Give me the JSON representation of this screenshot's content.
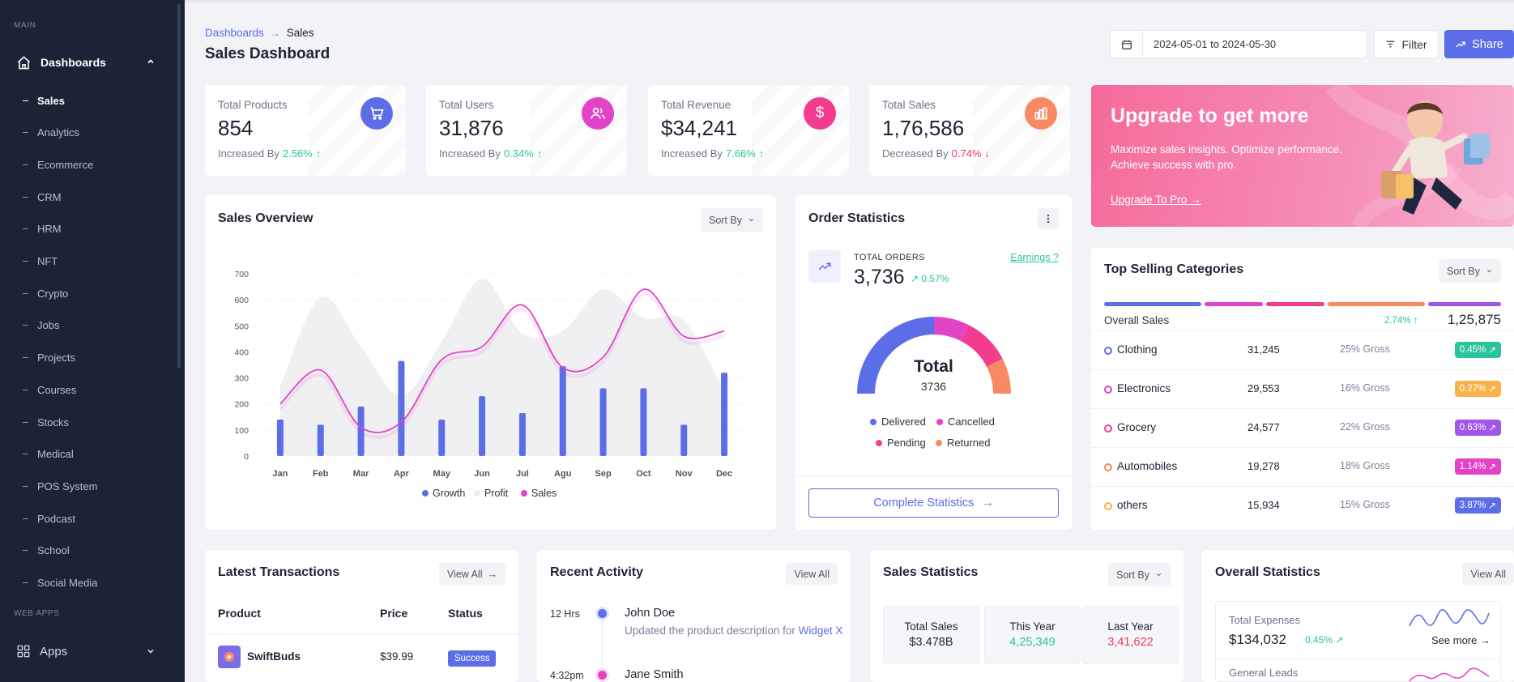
{
  "sidebar": {
    "section_main": "MAIN",
    "dashboards_label": "Dashboards",
    "items": [
      "Sales",
      "Analytics",
      "Ecommerce",
      "CRM",
      "HRM",
      "NFT",
      "Crypto",
      "Jobs",
      "Projects",
      "Courses",
      "Stocks",
      "Medical",
      "POS System",
      "Podcast",
      "School",
      "Social Media"
    ],
    "active_item": "Sales",
    "section_webapps": "WEB APPS",
    "apps_label": "Apps"
  },
  "header": {
    "breadcrumb_root": "Dashboards",
    "breadcrumb_sep": "→",
    "breadcrumb_current": "Sales",
    "title": "Sales Dashboard",
    "date_range": "2024-05-01 to 2024-05-30",
    "filter_label": "Filter",
    "share_label": "Share"
  },
  "kpis": [
    {
      "title": "Total Products",
      "value": "854",
      "trend_text": "Increased By",
      "pct": "2.56%",
      "arrow": "↑",
      "color": "#5b6ee8"
    },
    {
      "title": "Total Users",
      "value": "31,876",
      "trend_text": "Increased By",
      "pct": "0.34%",
      "arrow": "↑",
      "color": "#e243c7"
    },
    {
      "title": "Total Revenue",
      "value": "$34,241",
      "trend_text": "Increased By",
      "pct": "7.66%",
      "arrow": "↑",
      "color": "#f23d8f"
    },
    {
      "title": "Total Sales",
      "value": "1,76,586",
      "trend_text": "Decreased By",
      "pct": "0.74%",
      "arrow": "↓",
      "color": "#f78a62"
    }
  ],
  "upgrade": {
    "title": "Upgrade to get more",
    "description": "Maximize sales insights. Optimize performance. Achieve success with pro.",
    "link": "Upgrade To Pro"
  },
  "sales_overview": {
    "title": "Sales Overview",
    "sort_label": "Sort By"
  },
  "chart_data": {
    "type": "bar",
    "title": "Sales Overview",
    "categories": [
      "Jan",
      "Feb",
      "Mar",
      "Apr",
      "May",
      "Jun",
      "Jul",
      "Agu",
      "Sep",
      "Oct",
      "Nov",
      "Dec"
    ],
    "series": [
      {
        "name": "Growth",
        "type": "bar",
        "color": "#5b6ee8",
        "values": [
          140,
          120,
          190,
          365,
          140,
          230,
          165,
          345,
          260,
          260,
          120,
          320
        ]
      },
      {
        "name": "Profit",
        "type": "area",
        "color": "#f1f1f4",
        "values": [
          270,
          610,
          420,
          230,
          440,
          680,
          470,
          480,
          640,
          530,
          520,
          250
        ]
      },
      {
        "name": "Sales",
        "type": "line",
        "color": "#e243c7",
        "values": [
          200,
          330,
          110,
          130,
          370,
          420,
          580,
          340,
          380,
          640,
          460,
          480
        ]
      }
    ],
    "yticks": [
      0,
      100,
      200,
      300,
      400,
      500,
      600,
      700
    ],
    "ylim": [
      0,
      700
    ]
  },
  "order_stats": {
    "title": "Order Statistics",
    "total_label": "TOTAL ORDERS",
    "total_value": "3,736",
    "total_pct": "0.57%",
    "earnings_link": "Earnings ?",
    "gauge_title": "Total",
    "gauge_value": "3736",
    "segments": [
      {
        "name": "Delivered",
        "color": "#5b6ee8",
        "share": 0.5
      },
      {
        "name": "Cancelled",
        "color": "#e243c7",
        "share": 0.15
      },
      {
        "name": "Pending",
        "color": "#f23d8f",
        "share": 0.2
      },
      {
        "name": "Returned",
        "color": "#f78a62",
        "share": 0.15
      }
    ],
    "button_label": "Complete Statistics"
  },
  "top_selling": {
    "title": "Top Selling Categories",
    "sort_label": "Sort By",
    "overall_label": "Overall Sales",
    "overall_pct": "2.74%",
    "overall_total": "1,25,875",
    "rows": [
      {
        "name": "Clothing",
        "value": "31,245",
        "gross": "25% Gross",
        "badge": "0.45%",
        "color": "#2bc39a",
        "ring": "#5b6ee8"
      },
      {
        "name": "Electronics",
        "value": "29,553",
        "gross": "16% Gross",
        "badge": "0.27%",
        "color": "#f8b24c",
        "ring": "#e243c7"
      },
      {
        "name": "Grocery",
        "value": "24,577",
        "gross": "22% Gross",
        "badge": "0.63%",
        "color": "#a256e8",
        "ring": "#f23d8f"
      },
      {
        "name": "Automobiles",
        "value": "19,278",
        "gross": "18% Gross",
        "badge": "1.14%",
        "color": "#e243c7",
        "ring": "#f78a62"
      },
      {
        "name": "others",
        "value": "15,934",
        "gross": "15% Gross",
        "badge": "3.87%",
        "color": "#5b6ee8",
        "ring": "#f8b24c"
      }
    ]
  },
  "latest_transactions": {
    "title": "Latest Transactions",
    "view_all": "View All",
    "headers": [
      "Product",
      "Price",
      "Status"
    ],
    "rows": [
      {
        "product": "SwiftBuds",
        "price": "$39.99",
        "status": "Success"
      }
    ]
  },
  "recent_activity": {
    "title": "Recent Activity",
    "view_all": "View All",
    "items": [
      {
        "time": "12 Hrs",
        "name": "John Doe",
        "desc": "Updated the product description for",
        "link": "Widget X"
      },
      {
        "time": "4:32pm",
        "name": "Jane Smith"
      }
    ]
  },
  "sales_statistics": {
    "title": "Sales Statistics",
    "sort_label": "Sort By",
    "boxes": [
      {
        "label": "Total Sales",
        "value": "$3.478B",
        "color": "#1e2433"
      },
      {
        "label": "This Year",
        "value": "4,25,349",
        "color": "#2bc39a"
      },
      {
        "label": "Last Year",
        "value": "3,41,622",
        "color": "#f0385a"
      }
    ]
  },
  "overall_statistics": {
    "title": "Overall Statistics",
    "view_all": "View All",
    "expenses_label": "Total Expenses",
    "expenses_value": "$134,032",
    "expenses_pct": "0.45%",
    "see_more": "See more",
    "general_leads_label": "General Leads"
  }
}
